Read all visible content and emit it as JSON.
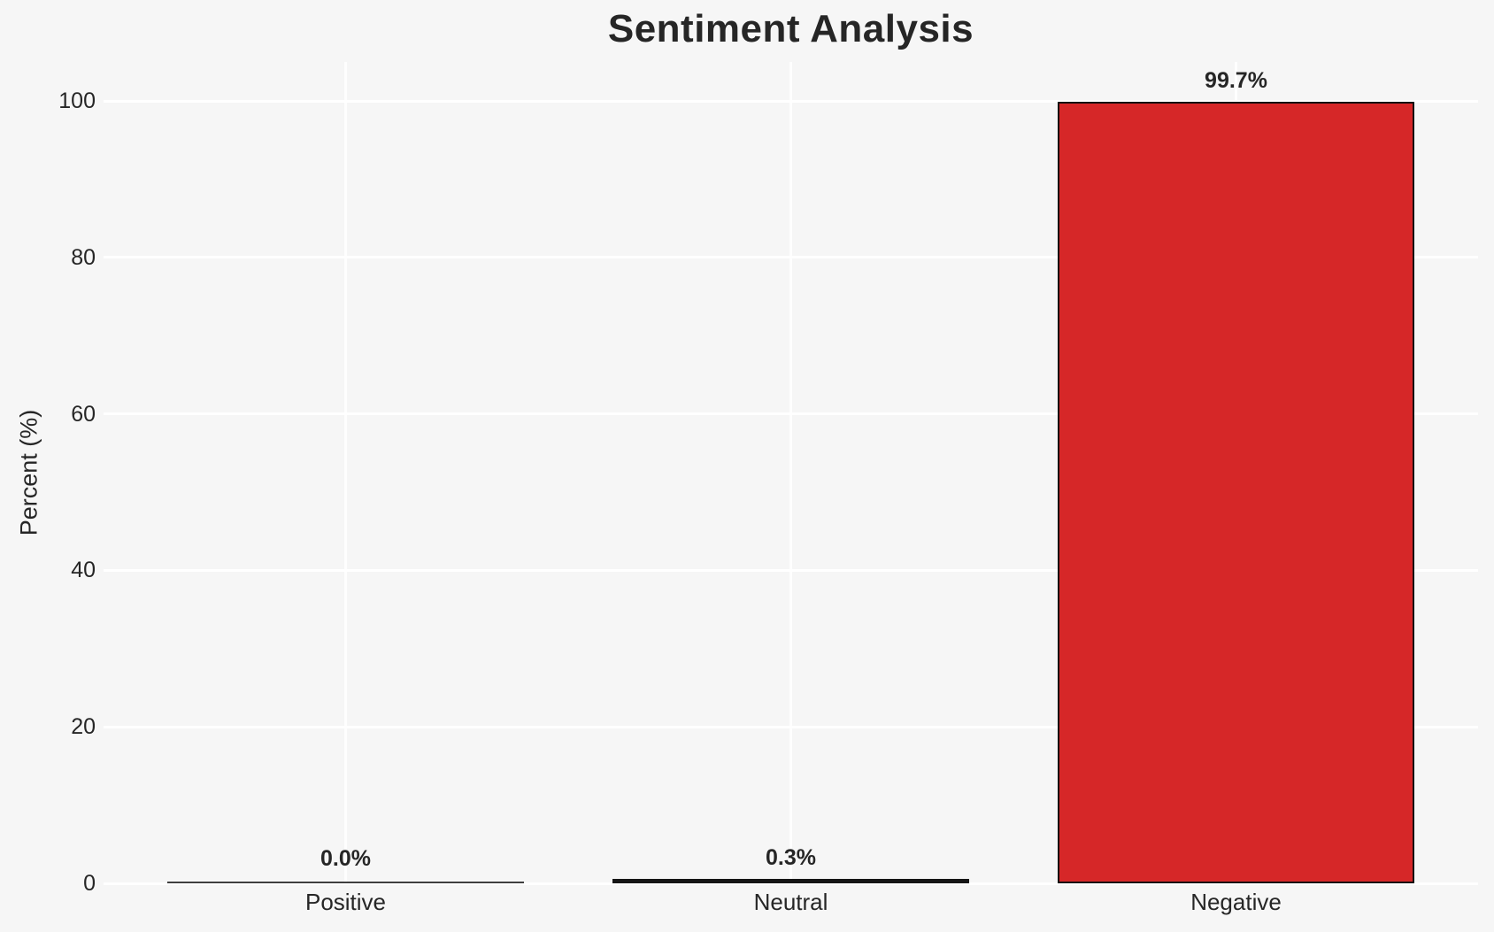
{
  "chart_data": {
    "type": "bar",
    "title": "Sentiment Analysis",
    "xlabel": "",
    "ylabel": "Percent (%)",
    "categories": [
      "Positive",
      "Neutral",
      "Negative"
    ],
    "values": [
      0.0,
      0.3,
      99.7
    ],
    "value_labels": [
      "0.0%",
      "0.3%",
      "99.7%"
    ],
    "bar_render_colors": [
      "#3f3f3f",
      "#151515",
      "#d62728"
    ],
    "bar_edge_color": "#111111",
    "yticks": [
      0,
      20,
      40,
      60,
      80,
      100
    ],
    "ytick_labels": [
      "0",
      "20",
      "40",
      "60",
      "80",
      "100"
    ],
    "ylim": [
      0,
      105
    ],
    "grid": true,
    "grid_color": "#ffffff",
    "background_color": "#f6f6f6",
    "text_color": "#262626",
    "legend": "none"
  }
}
